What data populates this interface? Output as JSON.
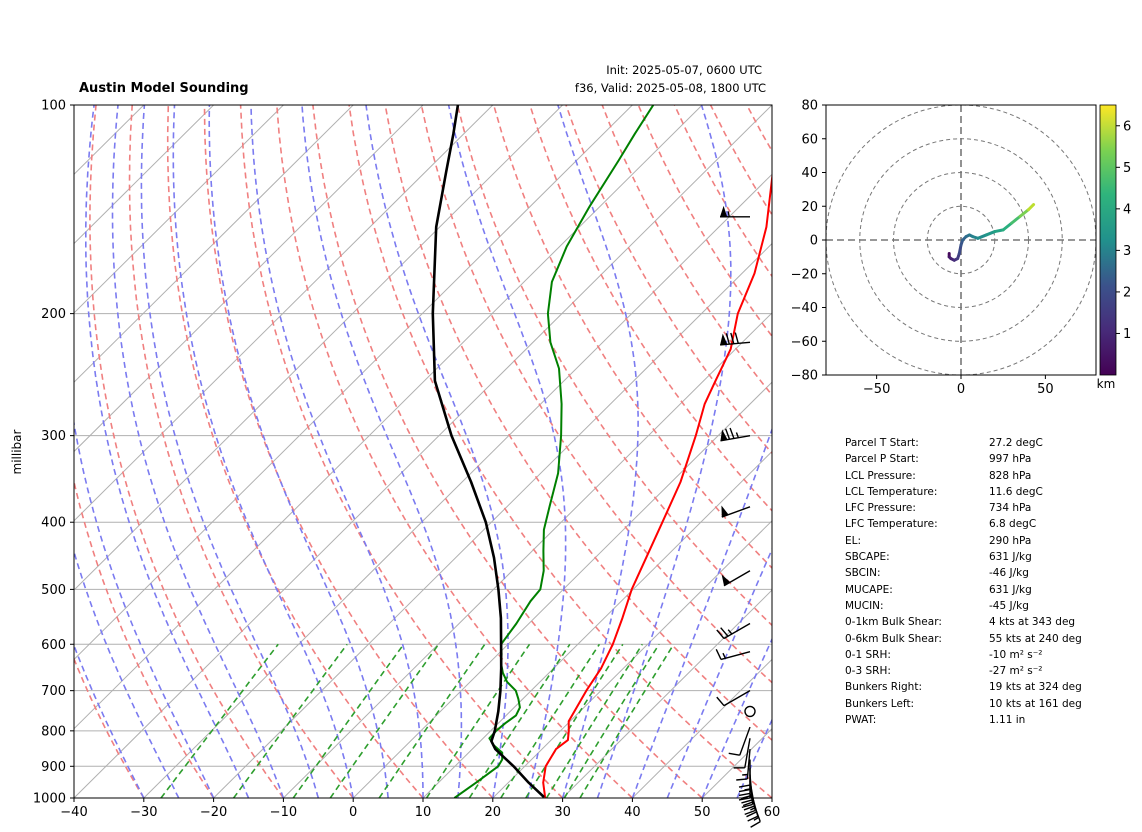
{
  "header": {
    "title": "Austin Model Sounding",
    "init": "Init: 2025-05-07, 0600 UTC",
    "valid": "f36, Valid: 2025-05-08, 1800 UTC"
  },
  "chart_data": [
    {
      "type": "line",
      "subtype": "skew-T log-P",
      "ylabel": "millibar",
      "xlim": [
        -40,
        60
      ],
      "ylim": [
        1000,
        100
      ],
      "y_scale": "log",
      "x_ticks": [
        "−40",
        "−30",
        "−20",
        "−10",
        "0",
        "10",
        "20",
        "30",
        "40",
        "50",
        "60"
      ],
      "y_ticks": [
        "100",
        "200",
        "300",
        "400",
        "500",
        "600",
        "700",
        "800",
        "900",
        "1000"
      ],
      "grid": true,
      "series": [
        {
          "color": "#ff0000",
          "p": [
            1000,
            950,
            900,
            850,
            825,
            800,
            775,
            750,
            700,
            650,
            600,
            550,
            500,
            450,
            400,
            350,
            300,
            270,
            250,
            225,
            200,
            175,
            150,
            125,
            110,
            100
          ],
          "t": [
            27.5,
            25.0,
            23.0,
            22.0,
            22.4,
            21.2,
            19.8,
            19.2,
            17.9,
            16.8,
            15.0,
            12.6,
            9.8,
            7.3,
            4.5,
            1.3,
            -3.2,
            -6.5,
            -8.3,
            -10.7,
            -14.8,
            -18.2,
            -23.2,
            -30.2,
            -34.5,
            -38.6
          ]
        },
        {
          "color": "#008000",
          "p": [
            1000,
            950,
            900,
            880,
            860,
            840,
            820,
            800,
            780,
            760,
            740,
            720,
            700,
            680,
            660,
            640,
            620,
            600,
            560,
            520,
            500,
            470,
            440,
            410,
            380,
            340,
            300,
            270,
            240,
            220,
            200,
            180,
            160,
            140,
            120,
            110,
            100
          ],
          "t": [
            14.5,
            15.4,
            16.2,
            15.8,
            14.8,
            12.6,
            10.9,
            10.8,
            11.0,
            11.4,
            10.8,
            9.4,
            7.8,
            5.3,
            3.4,
            1.8,
            0.5,
            -1.0,
            -1.8,
            -3.0,
            -3.3,
            -5.5,
            -8.4,
            -11.4,
            -13.9,
            -17.5,
            -22.5,
            -27.0,
            -32.5,
            -37.5,
            -42.0,
            -46.0,
            -49.0,
            -51.5,
            -54.0,
            -55.5,
            -57.0
          ]
        },
        {
          "color": "#000000",
          "p": [
            997,
            950,
            900,
            850,
            828,
            800,
            750,
            700,
            650,
            600,
            550,
            500,
            450,
            400,
            350,
            300,
            250,
            200,
            150,
            125,
            110,
            100
          ],
          "t": [
            27.2,
            22.9,
            18.4,
            13.3,
            11.6,
            10.6,
            8.3,
            5.6,
            2.5,
            -1.0,
            -4.8,
            -9.3,
            -14.5,
            -20.8,
            -28.7,
            -38.2,
            -48.5,
            -58.5,
            -70.5,
            -77.0,
            -81.5,
            -85.0
          ]
        }
      ],
      "wind_barbs": [
        {
          "p": 985,
          "speed_kt": 15,
          "dir_deg": 160
        },
        {
          "p": 965,
          "speed_kt": 25,
          "dir_deg": 165
        },
        {
          "p": 945,
          "speed_kt": 30,
          "dir_deg": 170
        },
        {
          "p": 925,
          "speed_kt": 30,
          "dir_deg": 175
        },
        {
          "p": 905,
          "speed_kt": 25,
          "dir_deg": 180
        },
        {
          "p": 880,
          "speed_kt": 20,
          "dir_deg": 180
        },
        {
          "p": 850,
          "speed_kt": 15,
          "dir_deg": 185
        },
        {
          "p": 820,
          "speed_kt": 10,
          "dir_deg": 190
        },
        {
          "p": 790,
          "speed_kt": 10,
          "dir_deg": 200
        },
        {
          "p": 750,
          "speed_kt": 0,
          "dir_deg": 0
        },
        {
          "p": 700,
          "speed_kt": 10,
          "dir_deg": 240
        },
        {
          "p": 615,
          "speed_kt": 15,
          "dir_deg": 255
        },
        {
          "p": 560,
          "speed_kt": 25,
          "dir_deg": 240
        },
        {
          "p": 470,
          "speed_kt": 50,
          "dir_deg": 240
        },
        {
          "p": 380,
          "speed_kt": 50,
          "dir_deg": 250
        },
        {
          "p": 300,
          "speed_kt": 75,
          "dir_deg": 260
        },
        {
          "p": 220,
          "speed_kt": 80,
          "dir_deg": 265
        },
        {
          "p": 145,
          "speed_kt": 55,
          "dir_deg": 270
        }
      ],
      "wind_barb_color": "#000000"
    },
    {
      "type": "line",
      "subtype": "hodograph",
      "xlim": [
        -80,
        80
      ],
      "ylim": [
        -80,
        80
      ],
      "x_ticks": [
        "−50",
        "0",
        "50"
      ],
      "y_ticks": [
        "−80",
        "−60",
        "−40",
        "−20",
        "0",
        "20",
        "40",
        "60",
        "80"
      ],
      "rings": [
        20,
        40,
        60,
        80
      ],
      "colorbar_label": "km",
      "colorbar_ticks": [
        "1",
        "2",
        "3",
        "4",
        "5",
        "6"
      ],
      "colorbar_range": [
        0,
        6.5
      ],
      "series": [
        {
          "colormap": "viridis",
          "u": [
            -7,
            -7,
            -6,
            -4,
            -2,
            -1,
            0,
            1,
            3,
            5,
            7,
            10,
            15,
            20,
            25,
            30,
            35,
            40,
            43
          ],
          "v": [
            -8,
            -10,
            -11,
            -12,
            -11,
            -8,
            -3,
            0,
            2,
            3,
            2,
            1,
            3,
            5,
            6,
            10,
            14,
            18,
            21
          ],
          "height_km": [
            0,
            0.3,
            0.5,
            0.8,
            1.0,
            1.3,
            1.6,
            1.9,
            2.2,
            2.5,
            2.8,
            3.0,
            3.3,
            3.6,
            3.9,
            4.3,
            4.8,
            5.5,
            6.2
          ]
        }
      ]
    }
  ],
  "stats": [
    {
      "label": "Parcel T Start:",
      "value": "27.2 degC"
    },
    {
      "label": "Parcel P Start:",
      "value": "997 hPa"
    },
    {
      "label": "LCL Pressure:",
      "value": "828 hPa"
    },
    {
      "label": "LCL Temperature:",
      "value": "11.6 degC"
    },
    {
      "label": "LFC Pressure:",
      "value": "734 hPa"
    },
    {
      "label": "LFC Temperature:",
      "value": "6.8 degC"
    },
    {
      "label": "EL:",
      "value": "290 hPa"
    },
    {
      "label": "SBCAPE:",
      "value": "631 J/kg"
    },
    {
      "label": "SBCIN:",
      "value": "-46 J/kg"
    },
    {
      "label": "MUCAPE:",
      "value": "631 J/kg"
    },
    {
      "label": "MUCIN:",
      "value": "-45 J/kg"
    },
    {
      "label": "0-1km Bulk Shear:",
      "value": "4 kts at 343 deg"
    },
    {
      "label": "0-6km Bulk Shear:",
      "value": "55 kts at 240 deg"
    },
    {
      "label": "0-1 SRH:",
      "value": "-10 m² s⁻²"
    },
    {
      "label": "0-3 SRH:",
      "value": "-27 m² s⁻²"
    },
    {
      "label": "Bunkers Right:",
      "value": "19 kts at 324 deg"
    },
    {
      "label": "Bunkers Left:",
      "value": "10 kts at 161 deg"
    },
    {
      "label": "PWAT:",
      "value": "1.11 in"
    }
  ]
}
